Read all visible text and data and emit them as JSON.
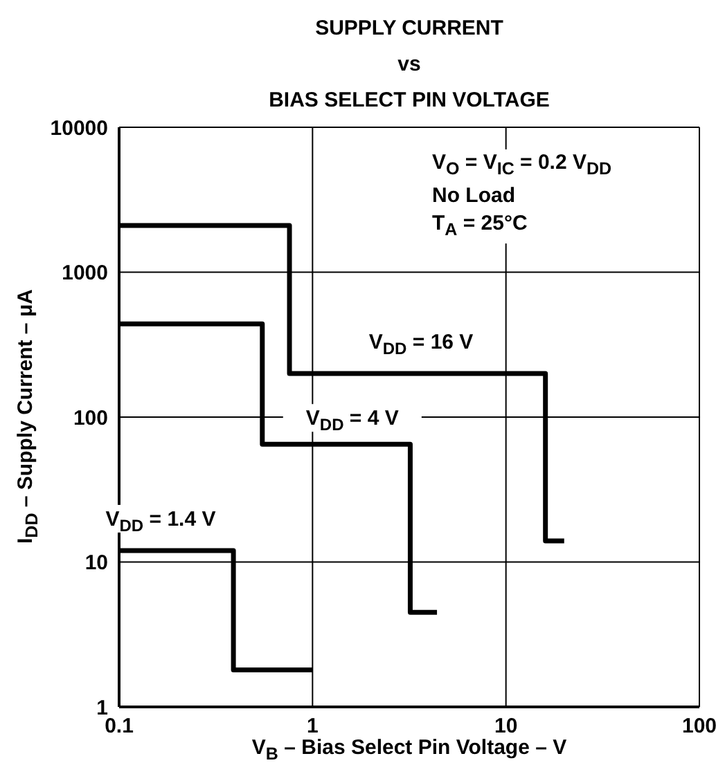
{
  "chart_data": {
    "type": "step",
    "title": "SUPPLY CURRENT\nvs\nBIAS SELECT PIN VOLTAGE",
    "xlabel": "V$_{B}$ – Bias Select Pin Voltage – V",
    "ylabel": "I$_{DD}$ – Supply Current – μA",
    "log": "xy",
    "grid": true,
    "legend": false,
    "xlim": [
      0.1,
      100
    ],
    "xticks": [
      0.1,
      1,
      10,
      100
    ],
    "ylim": [
      1,
      10000
    ],
    "yticks": [
      1,
      10,
      100,
      1000,
      10000
    ],
    "annotations": [
      "V$_{O}$ = V$_{IC}$ = 0.2 V$_{DD}$",
      "No Load",
      "T$_{A}$ = 25°C"
    ],
    "series": [
      {
        "name": "V$_{DD}$ = 16 V",
        "color": "#000000",
        "x": [
          0.1,
          0.76,
          16,
          20
        ],
        "values": [
          2100,
          200,
          14,
          14
        ]
      },
      {
        "name": "V$_{DD}$ = 4 V",
        "color": "#000000",
        "x": [
          0.1,
          0.55,
          3.2,
          4.4
        ],
        "values": [
          440,
          65,
          4.5,
          4.5
        ]
      },
      {
        "name": "V$_{DD}$ = 1.4 V",
        "color": "#000000",
        "x": [
          0.1,
          0.39,
          1
        ],
        "values": [
          12,
          1.8,
          1.8
        ]
      }
    ]
  }
}
